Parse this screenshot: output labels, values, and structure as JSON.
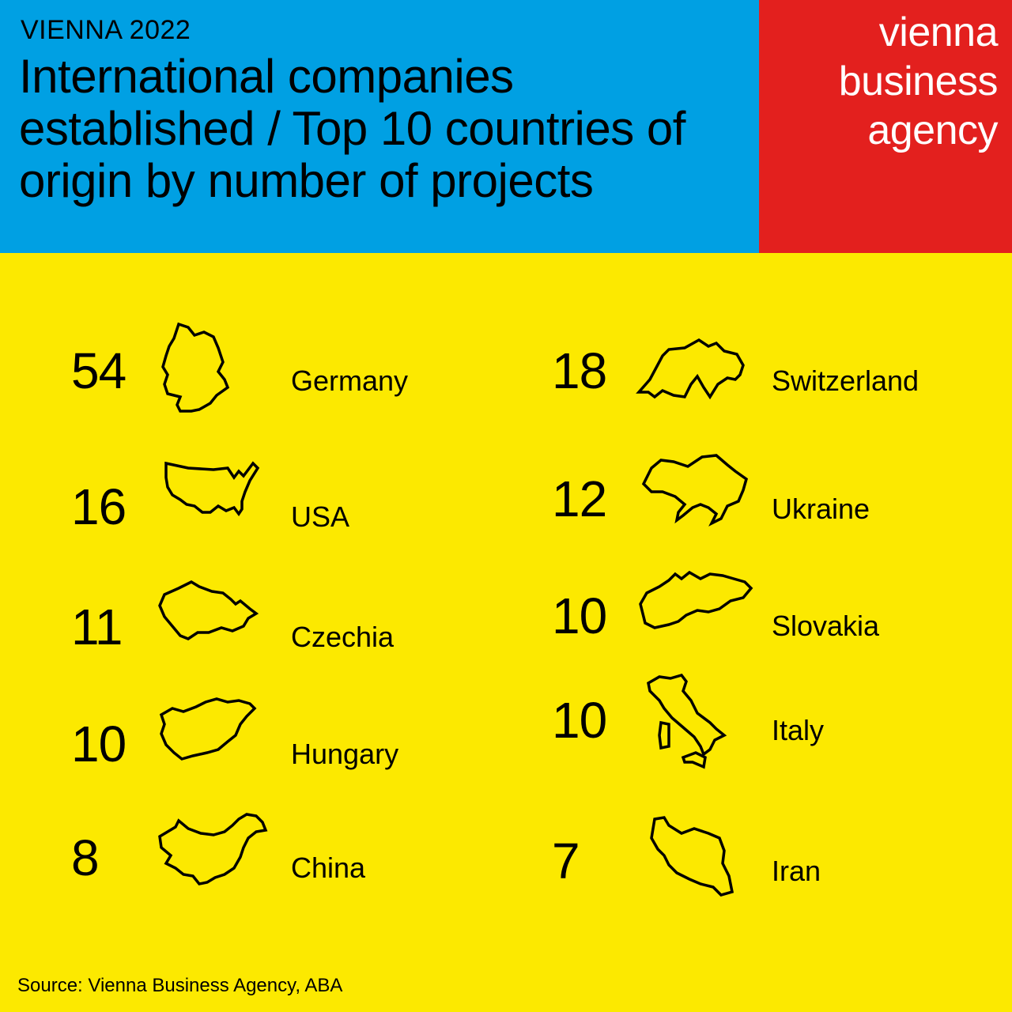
{
  "header": {
    "kicker": "VIENNA 2022",
    "title": "International companies established / Top 10 countries of origin by number of projects",
    "brand_lines": [
      "vienna",
      "business",
      "agency"
    ]
  },
  "colors": {
    "header_blue": "#00A0E3",
    "brand_red": "#E3201E",
    "background_yellow": "#FCE900",
    "text": "#000000",
    "brand_text": "#FFFFFF"
  },
  "chart_data": {
    "type": "table",
    "columns": [
      "value",
      "country"
    ],
    "rows": [
      {
        "country": "Germany",
        "value": 54,
        "icon": "germany-map-icon"
      },
      {
        "country": "USA",
        "value": 16,
        "icon": "usa-map-icon"
      },
      {
        "country": "Czechia",
        "value": 11,
        "icon": "czechia-map-icon"
      },
      {
        "country": "Hungary",
        "value": 10,
        "icon": "hungary-map-icon"
      },
      {
        "country": "China",
        "value": 8,
        "icon": "china-map-icon"
      },
      {
        "country": "Switzerland",
        "value": 18,
        "icon": "switzerland-map-icon"
      },
      {
        "country": "Ukraine",
        "value": 12,
        "icon": "ukraine-map-icon"
      },
      {
        "country": "Slovakia",
        "value": 10,
        "icon": "slovakia-map-icon"
      },
      {
        "country": "Italy",
        "value": 10,
        "icon": "italy-map-icon"
      },
      {
        "country": "Iran",
        "value": 7,
        "icon": "iran-map-icon"
      }
    ]
  },
  "footer": {
    "source": "Source: Vienna Business Agency, ABA"
  }
}
